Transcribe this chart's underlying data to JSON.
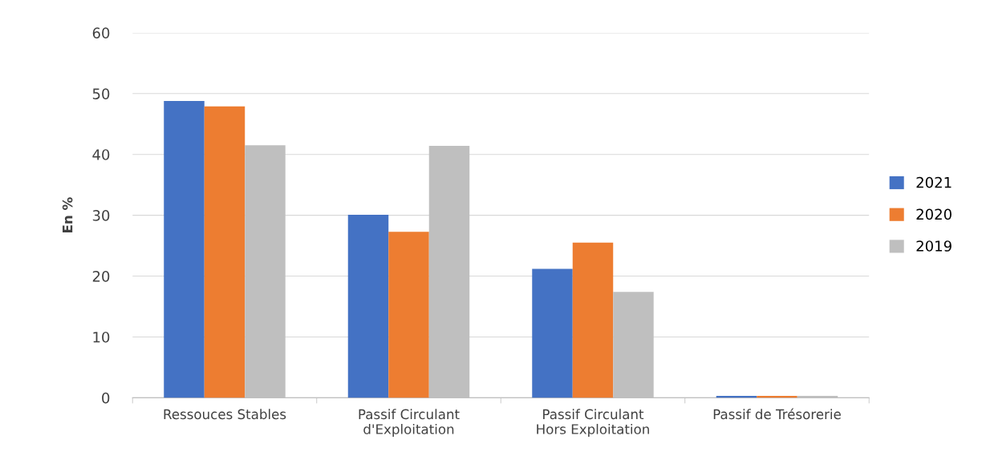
{
  "chart_data": {
    "type": "bar",
    "ylabel": "En %",
    "categories": [
      "Ressouces Stables",
      "Passif Circulant d'Exploitation",
      "Passif Circulant Hors Exploitation",
      "Passif de Trésorerie"
    ],
    "series": [
      {
        "name": "2021",
        "color": "#4472c4",
        "values": [
          48.8,
          30.1,
          21.2,
          0.3
        ]
      },
      {
        "name": "2020",
        "color": "#ed7d31",
        "values": [
          47.9,
          27.3,
          25.5,
          0.3
        ]
      },
      {
        "name": "2019",
        "color": "#bfbfbf",
        "values": [
          41.5,
          41.4,
          17.4,
          0.3
        ]
      }
    ],
    "ylim": [
      0,
      60
    ],
    "yticks": [
      0,
      10,
      20,
      30,
      40,
      50,
      60
    ],
    "grid": "y",
    "legend": "right"
  }
}
